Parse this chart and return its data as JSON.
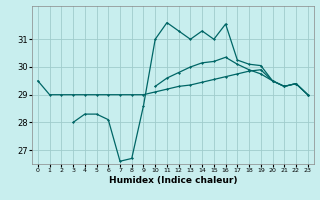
{
  "title": "",
  "xlabel": "Humidex (Indice chaleur)",
  "bg_color": "#c8eeee",
  "grid_color": "#a0cccc",
  "line_color": "#006666",
  "x_ticks": [
    0,
    1,
    2,
    3,
    4,
    5,
    6,
    7,
    8,
    9,
    10,
    11,
    12,
    13,
    14,
    15,
    16,
    17,
    18,
    19,
    20,
    21,
    22,
    23
  ],
  "xlim": [
    -0.5,
    23.5
  ],
  "ylim": [
    26.5,
    32.2
  ],
  "y_ticks": [
    27,
    28,
    29,
    30,
    31
  ],
  "line1_x": [
    0,
    1,
    2,
    3,
    4,
    5,
    6,
    7,
    8,
    9,
    10,
    11,
    12,
    13,
    14,
    15,
    16,
    17,
    18,
    19,
    20,
    21,
    22,
    23
  ],
  "line1_y": [
    29.5,
    29.0,
    29.0,
    29.0,
    29.0,
    29.0,
    29.0,
    29.0,
    29.0,
    29.0,
    29.1,
    29.2,
    29.3,
    29.35,
    29.45,
    29.55,
    29.65,
    29.75,
    29.85,
    29.9,
    29.5,
    29.3,
    29.4,
    29.0
  ],
  "line2_x": [
    3,
    4,
    5,
    6,
    7,
    8,
    9,
    10,
    11,
    12,
    13,
    14,
    15,
    16,
    17,
    18,
    19,
    20,
    21,
    22,
    23
  ],
  "line2_y": [
    28.0,
    28.3,
    28.3,
    28.1,
    26.6,
    26.7,
    28.6,
    31.0,
    31.6,
    31.3,
    31.0,
    31.3,
    31.0,
    31.55,
    30.25,
    30.1,
    30.05,
    29.5,
    29.3,
    29.4,
    29.0
  ],
  "line3_x": [
    10,
    11,
    12,
    13,
    14,
    15,
    16,
    17,
    18,
    19,
    20,
    21,
    22,
    23
  ],
  "line3_y": [
    29.3,
    29.6,
    29.8,
    30.0,
    30.15,
    30.2,
    30.35,
    30.1,
    29.9,
    29.75,
    29.5,
    29.3,
    29.4,
    29.0
  ]
}
